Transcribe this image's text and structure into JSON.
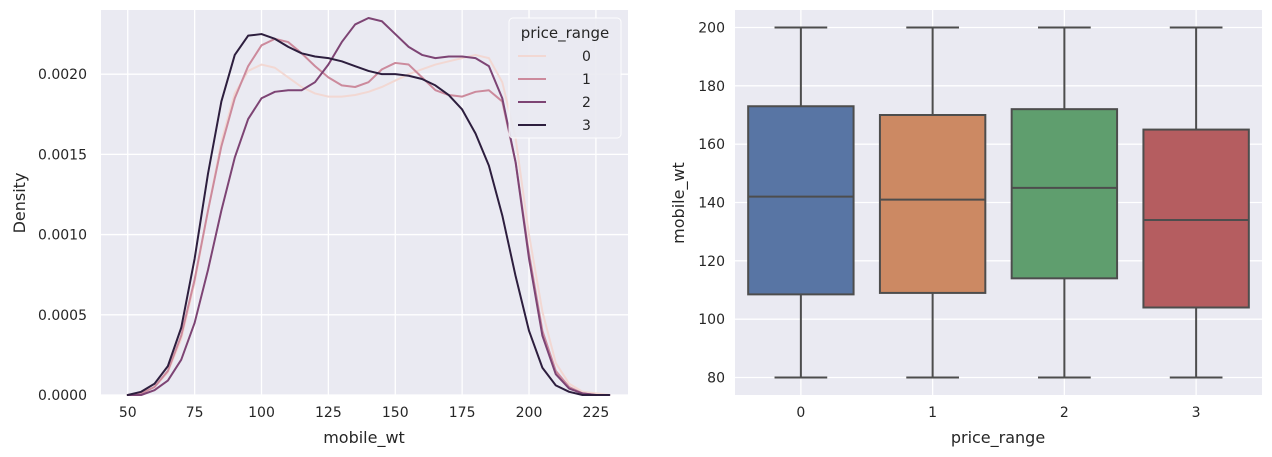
{
  "chart_data": [
    {
      "type": "line",
      "subtype": "kde",
      "xlabel": "mobile_wt",
      "ylabel": "Density",
      "xlim": [
        40,
        237
      ],
      "ylim": [
        0,
        0.0024
      ],
      "xticks": [
        50,
        75,
        100,
        125,
        150,
        175,
        200,
        225
      ],
      "yticks": [
        0.0,
        0.0005,
        0.001,
        0.0015,
        0.002
      ],
      "ytick_labels": [
        "0.0000",
        "0.0005",
        "0.0010",
        "0.0015",
        "0.0020"
      ],
      "grid": true,
      "legend": {
        "title": "price_range",
        "placement": "top-right"
      },
      "x": [
        50,
        55,
        60,
        65,
        70,
        75,
        80,
        85,
        90,
        95,
        100,
        105,
        110,
        115,
        120,
        125,
        130,
        135,
        140,
        145,
        150,
        155,
        160,
        165,
        170,
        175,
        180,
        185,
        190,
        195,
        200,
        205,
        210,
        215,
        220,
        225,
        230
      ],
      "series": [
        {
          "name": "0",
          "color": "#f2d8d3",
          "values": [
            0.0,
            1e-05,
            5e-05,
            0.00014,
            0.00035,
            0.0007,
            0.00115,
            0.00158,
            0.00188,
            0.00202,
            0.00206,
            0.00204,
            0.00198,
            0.00192,
            0.00188,
            0.00186,
            0.00186,
            0.00187,
            0.00189,
            0.00192,
            0.00196,
            0.002,
            0.00203,
            0.00206,
            0.00208,
            0.0021,
            0.00212,
            0.0021,
            0.00195,
            0.0016,
            0.001,
            0.00052,
            0.0002,
            7e-05,
            2e-05,
            1e-05,
            0.0
          ]
        },
        {
          "name": "1",
          "color": "#cc8a9c",
          "values": [
            0.0,
            1e-05,
            5e-05,
            0.00015,
            0.00037,
            0.00072,
            0.00115,
            0.00155,
            0.00185,
            0.00205,
            0.00218,
            0.00222,
            0.0022,
            0.00213,
            0.00205,
            0.00198,
            0.00193,
            0.00192,
            0.00195,
            0.00203,
            0.00207,
            0.00206,
            0.00198,
            0.0019,
            0.00187,
            0.00186,
            0.00189,
            0.0019,
            0.00183,
            0.00145,
            0.00088,
            0.0004,
            0.00015,
            5e-05,
            1e-05,
            0.0,
            0.0
          ]
        },
        {
          "name": "2",
          "color": "#7d4474",
          "values": [
            0.0,
            0.0,
            3e-05,
            9e-05,
            0.00022,
            0.00045,
            0.00078,
            0.00115,
            0.00148,
            0.00172,
            0.00185,
            0.00189,
            0.0019,
            0.0019,
            0.00195,
            0.00206,
            0.0022,
            0.00231,
            0.00235,
            0.00233,
            0.00225,
            0.00217,
            0.00212,
            0.0021,
            0.00211,
            0.00211,
            0.0021,
            0.00205,
            0.00185,
            0.00145,
            0.00085,
            0.00037,
            0.00013,
            4e-05,
            1e-05,
            0.0,
            0.0
          ]
        },
        {
          "name": "3",
          "color": "#2d1e3e",
          "values": [
            0.0,
            2e-05,
            7e-05,
            0.00018,
            0.00042,
            0.00085,
            0.00138,
            0.00183,
            0.00212,
            0.00224,
            0.00225,
            0.00222,
            0.00217,
            0.00213,
            0.00211,
            0.0021,
            0.00208,
            0.00205,
            0.00202,
            0.002,
            0.002,
            0.00199,
            0.00197,
            0.00193,
            0.00187,
            0.00178,
            0.00163,
            0.00143,
            0.00112,
            0.00074,
            0.0004,
            0.00017,
            6e-05,
            2e-05,
            0.0,
            0.0,
            0.0
          ]
        }
      ]
    },
    {
      "type": "box",
      "xlabel": "price_range",
      "ylabel": "mobile_wt",
      "categories": [
        "0",
        "1",
        "2",
        "3"
      ],
      "ylim": [
        74,
        206
      ],
      "yticks": [
        80,
        100,
        120,
        140,
        160,
        180,
        200
      ],
      "grid": true,
      "boxes": [
        {
          "category": "0",
          "min": 80,
          "q1": 108.5,
          "median": 142,
          "q3": 173,
          "max": 200,
          "color": "#5875a4"
        },
        {
          "category": "1",
          "min": 80,
          "q1": 109,
          "median": 141,
          "q3": 170,
          "max": 200,
          "color": "#cc8963"
        },
        {
          "category": "2",
          "min": 80,
          "q1": 114,
          "median": 145,
          "q3": 172,
          "max": 200,
          "color": "#5f9e6e"
        },
        {
          "category": "3",
          "min": 80,
          "q1": 104,
          "median": 134,
          "q3": 165,
          "max": 200,
          "color": "#b55d60"
        }
      ]
    }
  ]
}
